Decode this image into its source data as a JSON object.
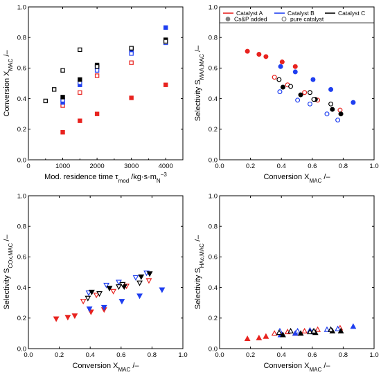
{
  "colors": {
    "catalyst_a": "#e8231f",
    "catalyst_b": "#1f3ff0",
    "catalyst_c": "#000000",
    "legend_gray": "#808080"
  },
  "legend": {
    "catalyst_a": "Catalyst A",
    "catalyst_b": "Catalyst B",
    "catalyst_c": "Catalyst C",
    "cs_p_added": "Cs&P added",
    "pure_catalyst": "pure catalyst"
  },
  "chart_data": [
    {
      "id": "conversion",
      "type": "scatter",
      "marker": "square",
      "xlabel": "Mod. residence time τ",
      "xlabel_sub": "mod",
      "xlabel_unit": " /kg·s·m",
      "xlabel_unit_sub": "N",
      "xlabel_unit_sup": "−3",
      "ylabel": "Conversion X",
      "ylabel_sub": "MAC",
      "ylabel_unit": " /–",
      "xlim": [
        0,
        4500
      ],
      "ylim": [
        0,
        1.0
      ],
      "xticks": [
        0,
        1000,
        2000,
        3000,
        4000
      ],
      "yticks": [
        0.0,
        0.2,
        0.4,
        0.6,
        0.8,
        1.0
      ],
      "series": [
        {
          "cat": "A",
          "filled": true,
          "x": [
            1000,
            1500,
            2000,
            3000,
            4000
          ],
          "y": [
            0.18,
            0.255,
            0.3,
            0.405,
            0.49
          ]
        },
        {
          "cat": "A",
          "filled": false,
          "x": [
            1000,
            1500,
            2000,
            3000,
            4000
          ],
          "y": [
            0.355,
            0.44,
            0.55,
            0.635,
            0.78
          ]
        },
        {
          "cat": "B",
          "filled": true,
          "x": [
            1000,
            1500,
            2000,
            3000,
            4000
          ],
          "y": [
            0.375,
            0.49,
            0.605,
            0.71,
            0.865
          ]
        },
        {
          "cat": "B",
          "filled": false,
          "x": [
            1000,
            1500,
            2000,
            3000,
            4000
          ],
          "y": [
            0.39,
            0.505,
            0.585,
            0.695,
            0.765
          ]
        },
        {
          "cat": "C",
          "filled": true,
          "x": [
            1000,
            1500,
            2000,
            3000,
            4000
          ],
          "y": [
            0.41,
            0.525,
            0.62,
            0.73,
            0.785
          ]
        },
        {
          "cat": "C",
          "filled": false,
          "x": [
            500,
            750,
            1000,
            1500,
            2000,
            3000,
            4000
          ],
          "y": [
            0.385,
            0.46,
            0.585,
            0.72,
            0.61,
            0.73,
            0.775
          ]
        }
      ]
    },
    {
      "id": "sel_maa",
      "type": "scatter",
      "marker": "circle",
      "xlabel": "Conversion X",
      "xlabel_sub": "MAC",
      "xlabel_unit": " /–",
      "ylabel": "Selectivity S",
      "ylabel_sub": "MAA,MAC",
      "ylabel_unit": " /–",
      "xlim": [
        0,
        1.0
      ],
      "ylim": [
        0,
        1.0
      ],
      "xticks": [
        0.0,
        0.2,
        0.4,
        0.6,
        0.8,
        1.0
      ],
      "yticks": [
        0.0,
        0.2,
        0.4,
        0.6,
        0.8,
        1.0
      ],
      "series": [
        {
          "cat": "A",
          "filled": true,
          "x": [
            0.18,
            0.255,
            0.3,
            0.405,
            0.49
          ],
          "y": [
            0.71,
            0.69,
            0.675,
            0.64,
            0.61
          ]
        },
        {
          "cat": "A",
          "filled": false,
          "x": [
            0.355,
            0.44,
            0.55,
            0.635,
            0.78
          ],
          "y": [
            0.54,
            0.49,
            0.44,
            0.39,
            0.325
          ]
        },
        {
          "cat": "B",
          "filled": true,
          "x": [
            0.395,
            0.49,
            0.605,
            0.72,
            0.865
          ],
          "y": [
            0.61,
            0.575,
            0.525,
            0.46,
            0.375
          ]
        },
        {
          "cat": "B",
          "filled": false,
          "x": [
            0.39,
            0.505,
            0.585,
            0.695,
            0.765
          ],
          "y": [
            0.445,
            0.39,
            0.365,
            0.3,
            0.26
          ]
        },
        {
          "cat": "C",
          "filled": true,
          "x": [
            0.41,
            0.525,
            0.62,
            0.73,
            0.785
          ],
          "y": [
            0.475,
            0.425,
            0.395,
            0.33,
            0.3
          ]
        },
        {
          "cat": "C",
          "filled": false,
          "x": [
            0.385,
            0.46,
            0.585,
            0.61,
            0.72
          ],
          "y": [
            0.525,
            0.48,
            0.44,
            0.395,
            0.365
          ]
        }
      ]
    },
    {
      "id": "sel_cox",
      "type": "scatter",
      "marker": "triangle-down",
      "xlabel": "Conversion X",
      "xlabel_sub": "MAC",
      "xlabel_unit": " /–",
      "ylabel": "Selectivity S",
      "ylabel_sub": "COx,MAC",
      "ylabel_unit": " /–",
      "xlim": [
        0,
        1.0
      ],
      "ylim": [
        0,
        1.0
      ],
      "xticks": [
        0.0,
        0.2,
        0.4,
        0.6,
        0.8,
        1.0
      ],
      "yticks": [
        0.0,
        0.2,
        0.4,
        0.6,
        0.8,
        1.0
      ],
      "series": [
        {
          "cat": "A",
          "filled": true,
          "x": [
            0.18,
            0.255,
            0.3,
            0.405,
            0.49
          ],
          "y": [
            0.195,
            0.205,
            0.215,
            0.24,
            0.255
          ]
        },
        {
          "cat": "A",
          "filled": false,
          "x": [
            0.355,
            0.44,
            0.55,
            0.635,
            0.78
          ],
          "y": [
            0.31,
            0.35,
            0.375,
            0.41,
            0.445
          ]
        },
        {
          "cat": "B",
          "filled": true,
          "x": [
            0.395,
            0.49,
            0.605,
            0.72,
            0.865
          ],
          "y": [
            0.26,
            0.27,
            0.31,
            0.345,
            0.385
          ]
        },
        {
          "cat": "B",
          "filled": false,
          "x": [
            0.39,
            0.505,
            0.585,
            0.695,
            0.765
          ],
          "y": [
            0.365,
            0.415,
            0.435,
            0.465,
            0.495
          ]
        },
        {
          "cat": "C",
          "filled": true,
          "x": [
            0.41,
            0.525,
            0.62,
            0.73,
            0.785
          ],
          "y": [
            0.37,
            0.395,
            0.405,
            0.47,
            0.49
          ]
        },
        {
          "cat": "C",
          "filled": false,
          "x": [
            0.385,
            0.46,
            0.585,
            0.61,
            0.72
          ],
          "y": [
            0.33,
            0.36,
            0.405,
            0.42,
            0.43
          ]
        }
      ]
    },
    {
      "id": "sel_hac",
      "type": "scatter",
      "marker": "triangle-up",
      "xlabel": "Conversion X",
      "xlabel_sub": "MAC",
      "xlabel_unit": " /–",
      "ylabel": "Selectivity S",
      "ylabel_sub": "HAc,MAC",
      "ylabel_unit": " /–",
      "xlim": [
        0,
        1.0
      ],
      "ylim": [
        0,
        1.0
      ],
      "xticks": [
        0.0,
        0.2,
        0.4,
        0.6,
        0.8,
        1.0
      ],
      "yticks": [
        0.0,
        0.2,
        0.4,
        0.6,
        0.8,
        1.0
      ],
      "series": [
        {
          "cat": "A",
          "filled": true,
          "x": [
            0.18,
            0.255,
            0.3,
            0.405,
            0.49
          ],
          "y": [
            0.065,
            0.07,
            0.08,
            0.09,
            0.1
          ]
        },
        {
          "cat": "A",
          "filled": false,
          "x": [
            0.355,
            0.44,
            0.55,
            0.635,
            0.78
          ],
          "y": [
            0.1,
            0.11,
            0.115,
            0.125,
            0.135
          ]
        },
        {
          "cat": "B",
          "filled": true,
          "x": [
            0.395,
            0.49,
            0.605,
            0.72,
            0.865
          ],
          "y": [
            0.09,
            0.1,
            0.11,
            0.125,
            0.145
          ]
        },
        {
          "cat": "B",
          "filled": false,
          "x": [
            0.39,
            0.505,
            0.585,
            0.695,
            0.765
          ],
          "y": [
            0.115,
            0.115,
            0.12,
            0.125,
            0.13
          ]
        },
        {
          "cat": "C",
          "filled": true,
          "x": [
            0.41,
            0.525,
            0.62,
            0.73,
            0.785
          ],
          "y": [
            0.09,
            0.1,
            0.105,
            0.115,
            0.115
          ]
        },
        {
          "cat": "C",
          "filled": false,
          "x": [
            0.385,
            0.46,
            0.585,
            0.61,
            0.72
          ],
          "y": [
            0.105,
            0.115,
            0.11,
            0.115,
            0.125
          ]
        }
      ]
    }
  ]
}
